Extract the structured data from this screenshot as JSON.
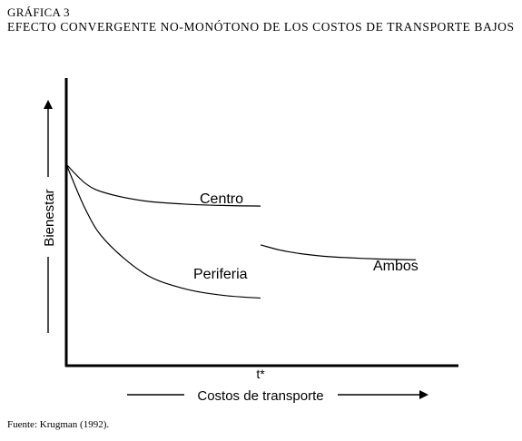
{
  "figure": {
    "label": "GRÁFICA 3",
    "title": "EFECTO CONVERGENTE NO-MONÓTONO DE LOS COSTOS DE TRANSPORTE BAJOS",
    "source": "Fuente: Krugman (1992)."
  },
  "chart_data": {
    "type": "line",
    "title": "EFECTO CONVERGENTE NO-MONÓTONO DE LOS COSTOS DE TRANSPORTE BAJOS",
    "xlabel": "Costos de transporte",
    "ylabel": "Bienestar",
    "x_ticks": [
      "t*"
    ],
    "xlim": [
      0,
      1
    ],
    "ylim": [
      0,
      1
    ],
    "grid": false,
    "legend": "none (curves labeled directly)",
    "series": [
      {
        "name": "Centro",
        "x": [
          0,
          0.05,
          0.1,
          0.2,
          0.3,
          0.4,
          0.5
        ],
        "y": [
          0.7,
          0.633,
          0.601,
          0.573,
          0.562,
          0.557,
          0.555
        ]
      },
      {
        "name": "Periferia",
        "x": [
          0,
          0.05,
          0.1,
          0.2,
          0.3,
          0.4,
          0.5
        ],
        "y": [
          0.7,
          0.542,
          0.436,
          0.321,
          0.269,
          0.245,
          0.235
        ]
      },
      {
        "name": "Ambos",
        "x": [
          0.5,
          0.55,
          0.6,
          0.65,
          0.7,
          0.8,
          0.9
        ],
        "y": [
          0.42,
          0.402,
          0.39,
          0.382,
          0.377,
          0.371,
          0.368
        ]
      }
    ]
  }
}
